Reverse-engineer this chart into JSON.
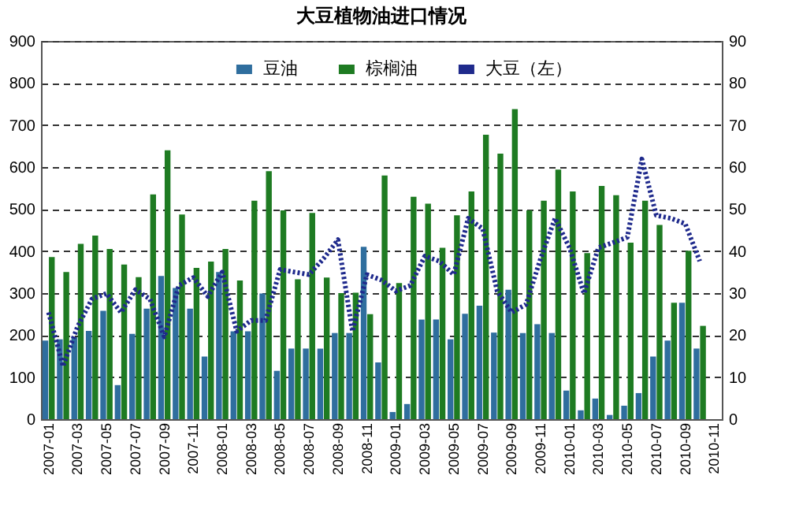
{
  "chart_data": {
    "type": "bar",
    "title": "大豆植物油进口情况",
    "categories": [
      "2007-01",
      null,
      "2007-03",
      null,
      "2007-05",
      null,
      "2007-07",
      null,
      "2007-09",
      null,
      "2007-11",
      null,
      "2008-01",
      null,
      "2008-03",
      null,
      "2008-05",
      null,
      "2008-07",
      null,
      "2008-09",
      null,
      "2008-11",
      null,
      "2009-01",
      null,
      "2009-03",
      null,
      "2009-05",
      null,
      "2009-07",
      null,
      "2009-09",
      null,
      "2009-11",
      null,
      "2010-01",
      null,
      "2010-03",
      null,
      "2010-05",
      null,
      "2010-07",
      null,
      "2010-09",
      null,
      "2010-11"
    ],
    "series": [
      {
        "name": "豆油",
        "type": "bar",
        "color": "#2f6e9e",
        "values": [
          187,
          190,
          195,
          210,
          258,
          81,
          203,
          263,
          341,
          312,
          263,
          149,
          350,
          209,
          209,
          299,
          115,
          168,
          168,
          168,
          205,
          205,
          410,
          135,
          17,
          36,
          237,
          237,
          190,
          251,
          270,
          206,
          308,
          205,
          226,
          205,
          68,
          21,
          49,
          10,
          32,
          62,
          149,
          187,
          277,
          168,
          null
        ]
      },
      {
        "name": "棕榈油",
        "type": "bar",
        "color": "#1e7b22",
        "values": [
          386,
          350,
          417,
          437,
          405,
          368,
          338,
          535,
          640,
          487,
          360,
          375,
          405,
          330,
          520,
          590,
          497,
          333,
          491,
          337,
          300,
          301,
          250,
          580,
          324,
          529,
          513,
          408,
          485,
          542,
          677,
          632,
          738,
          497,
          520,
          594,
          542,
          395,
          555,
          533,
          420,
          520,
          462,
          277,
          401,
          222,
          null
        ]
      },
      {
        "name": "大豆（左）",
        "type": "line",
        "axis": "y2",
        "color": "#1f2a8c",
        "values": [
          25.4,
          12.6,
          22,
          28.6,
          29.9,
          25.4,
          30.8,
          28.6,
          19.6,
          31.8,
          33.7,
          29.2,
          35,
          20.9,
          23.5,
          23.5,
          35.6,
          35,
          34.4,
          38.2,
          42.7,
          20.9,
          34.4,
          33.1,
          30.5,
          31.8,
          38.8,
          37.6,
          34.4,
          47.8,
          45.3,
          30.5,
          25.4,
          27.3,
          38.2,
          47.8,
          40.8,
          29.9,
          40.8,
          42,
          43.3,
          61.9,
          48.5,
          47.8,
          46.5,
          37.6,
          null
        ]
      }
    ],
    "ylim": [
      0,
      900
    ],
    "yticks": [
      0,
      100,
      200,
      300,
      400,
      500,
      600,
      700,
      800,
      900
    ],
    "y2lim": [
      0,
      90
    ],
    "y2ticks": [
      0,
      10,
      20,
      30,
      40,
      50,
      60,
      70,
      80,
      90
    ],
    "grid": "y",
    "legend": "top",
    "line_style": "dotted"
  }
}
